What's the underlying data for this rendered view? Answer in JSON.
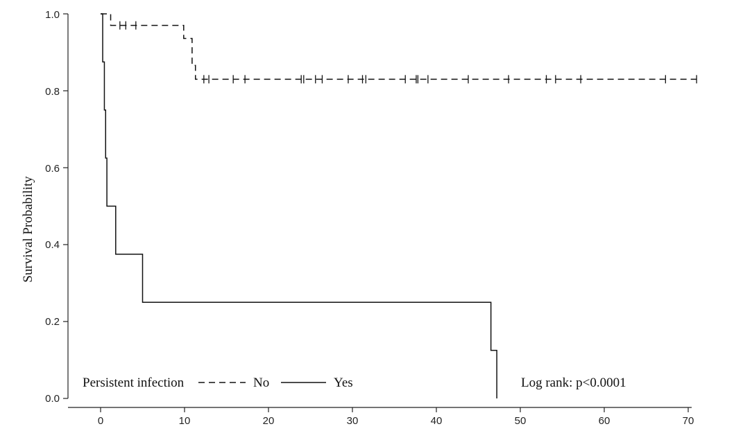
{
  "chart_data": {
    "type": "line",
    "subtype": "kaplan-meier",
    "title": "",
    "xlabel": "",
    "ylabel": "Survival Probability",
    "xlim": [
      -4,
      71
    ],
    "ylim": [
      0,
      1
    ],
    "x_ticks": [
      "0",
      "10",
      "20",
      "30",
      "40",
      "50",
      "60",
      "70"
    ],
    "y_ticks": [
      "0.0",
      "0.2",
      "0.4",
      "0.6",
      "0.8",
      "1.0"
    ],
    "grid": false,
    "legend": {
      "position": "bottom-left",
      "title": "Persistent infection",
      "entries": [
        {
          "label": "No",
          "style": "dashed"
        },
        {
          "label": "Yes",
          "style": "solid"
        }
      ]
    },
    "annotation": "Log rank: p<0.0001",
    "series": [
      {
        "name": "No",
        "style": "dashed",
        "steps": [
          [
            0,
            1.0
          ],
          [
            1.2,
            0.97
          ],
          [
            9.9,
            0.936
          ],
          [
            10.9,
            0.866
          ],
          [
            11.3,
            0.83
          ],
          [
            71,
            0.83
          ]
        ],
        "censored": [
          2.3,
          3.0,
          4.2,
          12.3,
          12.9,
          15.8,
          17.2,
          23.9,
          24.2,
          25.6,
          26.4,
          29.5,
          31.2,
          31.6,
          36.3,
          37.6,
          37.8,
          39.0,
          43.8,
          48.6,
          53.1,
          54.2,
          57.2,
          67.3,
          71.0
        ]
      },
      {
        "name": "Yes",
        "style": "solid",
        "steps": [
          [
            0,
            1.0
          ],
          [
            0.25,
            0.875
          ],
          [
            0.45,
            0.75
          ],
          [
            0.6,
            0.625
          ],
          [
            0.75,
            0.5
          ],
          [
            1.8,
            0.375
          ],
          [
            5.0,
            0.25
          ],
          [
            46.5,
            0.125
          ],
          [
            47.2,
            0.0
          ]
        ],
        "censored": []
      }
    ]
  }
}
